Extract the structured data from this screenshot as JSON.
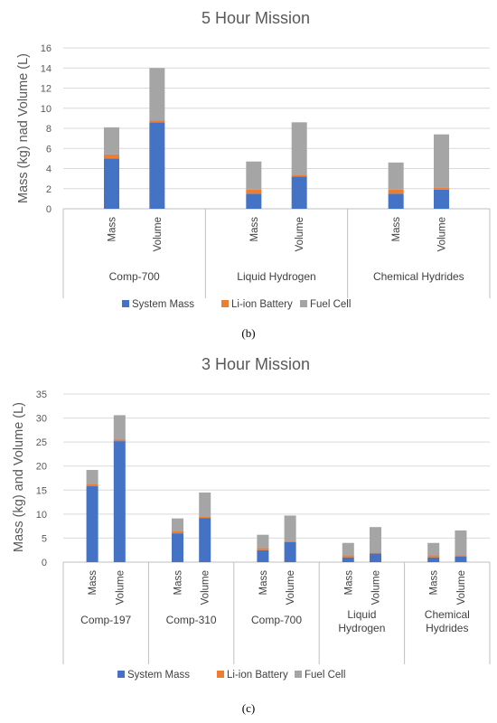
{
  "colors": {
    "system_mass": "#4472C4",
    "li_ion_battery": "#ED7D31",
    "fuel_cell": "#A5A5A5",
    "grid": "#d9d9d9",
    "axis": "#bfbfbf"
  },
  "chart_data": [
    {
      "type": "bar",
      "stacked": true,
      "caption": "(b)",
      "title": "5 Hour Mission",
      "ylabel": "Mass (kg) nad Volume (L)",
      "ylim": [
        0,
        16
      ],
      "yticks": [
        "0",
        "2",
        "4",
        "6",
        "8",
        "10",
        "12",
        "14",
        "16"
      ],
      "grid": true,
      "legend_position": "bottom",
      "groups": [
        {
          "label": "Comp-700",
          "categories": [
            "Mass",
            "Volume"
          ]
        },
        {
          "label": "Liquid Hydrogen",
          "categories": [
            "Mass",
            "Volume"
          ]
        },
        {
          "label": "Chemical Hydrides",
          "categories": [
            "Mass",
            "Volume"
          ]
        }
      ],
      "series": [
        {
          "name": "System Mass",
          "values": [
            5.0,
            8.6,
            1.5,
            3.2,
            1.5,
            1.9
          ]
        },
        {
          "name": "Li-ion Battery",
          "values": [
            0.4,
            0.2,
            0.4,
            0.2,
            0.4,
            0.2
          ]
        },
        {
          "name": "Fuel Cell",
          "values": [
            2.7,
            5.2,
            2.8,
            5.2,
            2.7,
            5.3
          ]
        }
      ]
    },
    {
      "type": "bar",
      "stacked": true,
      "caption": "(c)",
      "title": "3 Hour Mission",
      "ylabel": "Mass (kg) and Volume (L)",
      "ylim": [
        0,
        35
      ],
      "yticks": [
        "0",
        "5",
        "10",
        "15",
        "20",
        "25",
        "30",
        "35"
      ],
      "grid": true,
      "legend_position": "bottom",
      "groups": [
        {
          "label": "Comp-197",
          "categories": [
            "Mass",
            "Volume"
          ]
        },
        {
          "label": "Comp-310",
          "categories": [
            "Mass",
            "Volume"
          ]
        },
        {
          "label": "Comp-700",
          "categories": [
            "Mass",
            "Volume"
          ]
        },
        {
          "label": "Liquid Hydrogen",
          "categories": [
            "Mass",
            "Volume"
          ]
        },
        {
          "label": "Chemical Hydrides",
          "categories": [
            "Mass",
            "Volume"
          ]
        }
      ],
      "series": [
        {
          "name": "System Mass",
          "values": [
            15.8,
            25.2,
            6.0,
            9.2,
            2.5,
            4.2,
            1.0,
            1.8,
            1.0,
            1.2
          ]
        },
        {
          "name": "Li-ion Battery",
          "values": [
            0.5,
            0.3,
            0.4,
            0.2,
            0.4,
            0.2,
            0.4,
            0.2,
            0.4,
            0.2
          ]
        },
        {
          "name": "Fuel Cell",
          "values": [
            2.9,
            5.1,
            2.7,
            5.1,
            2.8,
            5.3,
            2.6,
            5.3,
            2.6,
            5.2
          ]
        }
      ]
    }
  ]
}
